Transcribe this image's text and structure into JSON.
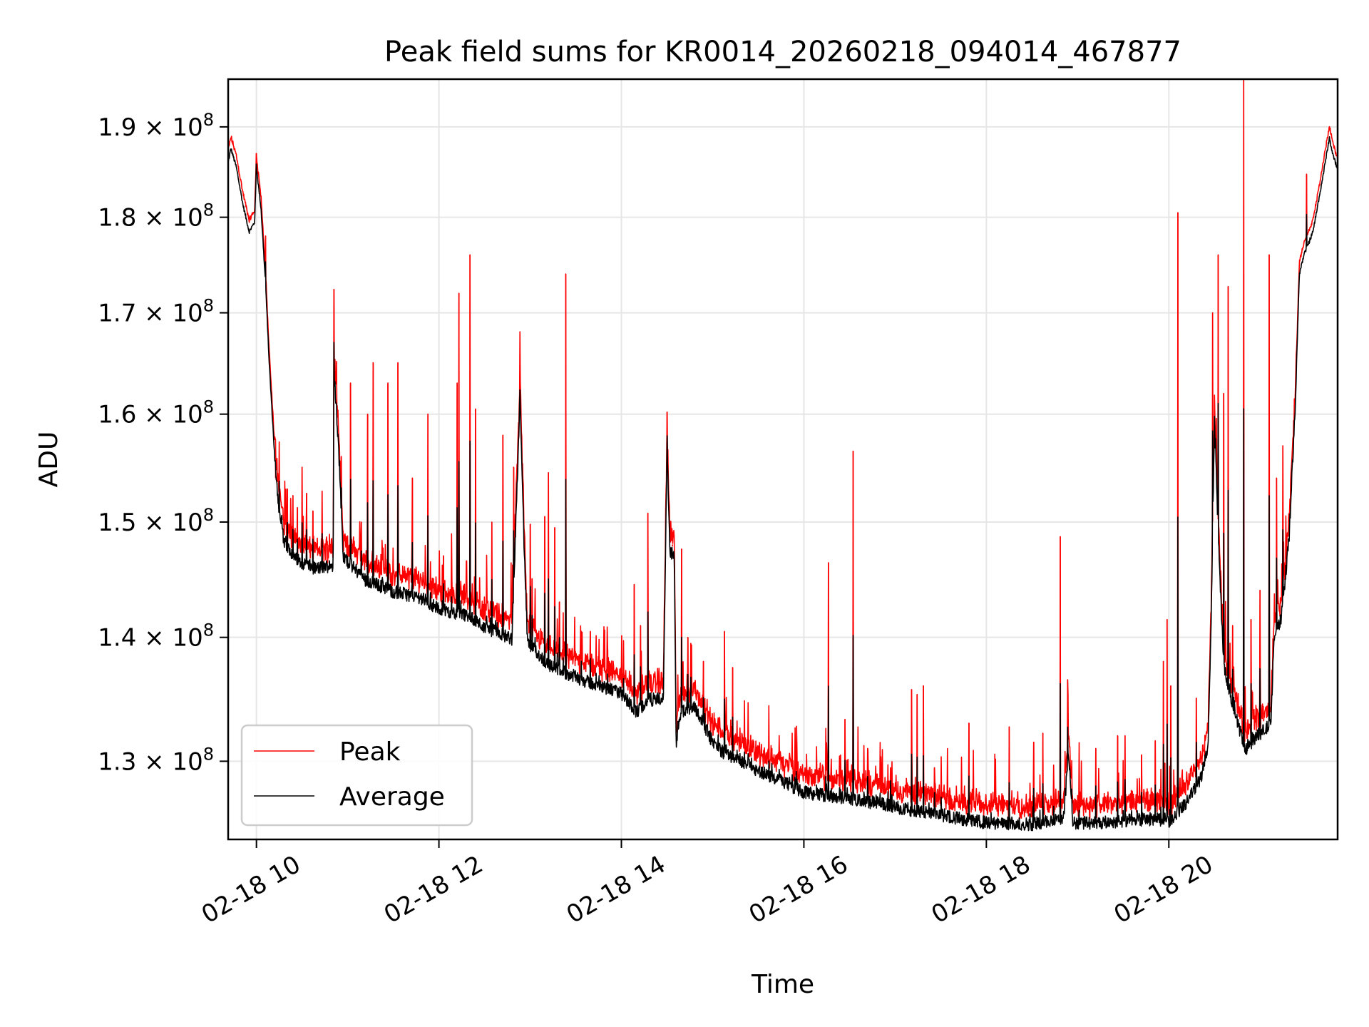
{
  "chart_data": {
    "type": "line",
    "title": "Peak field sums for KR0014_20260218_094014_467877",
    "xlabel": "Time",
    "ylabel": "ADU",
    "yscale": "log",
    "ylim": [
      124060000,
      195500000
    ],
    "xlim_hours": [
      9.69,
      21.85
    ],
    "x_unit": "hours on 2026-02-18",
    "grid": true,
    "legend_location": "lower-left",
    "x_ticks": [
      {
        "hour": 10,
        "label": "02-18 10"
      },
      {
        "hour": 12,
        "label": "02-18 12"
      },
      {
        "hour": 14,
        "label": "02-18 14"
      },
      {
        "hour": 16,
        "label": "02-18 16"
      },
      {
        "hour": 18,
        "label": "02-18 18"
      },
      {
        "hour": 20,
        "label": "02-18 20"
      }
    ],
    "y_ticks": [
      {
        "value": 130000000,
        "mantissa": "1.3",
        "exponent": "8"
      },
      {
        "value": 140000000,
        "mantissa": "1.4",
        "exponent": "8"
      },
      {
        "value": 150000000,
        "mantissa": "1.5",
        "exponent": "8"
      },
      {
        "value": 160000000,
        "mantissa": "1.6",
        "exponent": "8"
      },
      {
        "value": 170000000,
        "mantissa": "1.7",
        "exponent": "8"
      },
      {
        "value": 180000000,
        "mantissa": "1.8",
        "exponent": "8"
      },
      {
        "value": 190000000,
        "mantissa": "1.9",
        "exponent": "8"
      }
    ],
    "series": [
      {
        "name": "Peak",
        "color": "#ff0000",
        "baseline_offset_fraction": 0.006,
        "spikes": [
          [
            10.0,
            187000000
          ],
          [
            10.1,
            178000000
          ],
          [
            10.21,
            154000000
          ],
          [
            10.25,
            155500000
          ],
          [
            10.34,
            153000000
          ],
          [
            10.4,
            152400000
          ],
          [
            10.45,
            151300000
          ],
          [
            10.5,
            155000000
          ],
          [
            10.55,
            152600000
          ],
          [
            10.62,
            151000000
          ],
          [
            10.72,
            152800000
          ],
          [
            10.85,
            172400000
          ],
          [
            10.93,
            156000000
          ],
          [
            11.03,
            163000000
          ],
          [
            11.15,
            150000000
          ],
          [
            11.22,
            160000000
          ],
          [
            11.28,
            165000000
          ],
          [
            11.44,
            163000000
          ],
          [
            11.55,
            165000000
          ],
          [
            11.71,
            154000000
          ],
          [
            11.88,
            160000000
          ],
          [
            12.05,
            147000000
          ],
          [
            12.2,
            163000000
          ],
          [
            12.22,
            172000000
          ],
          [
            12.34,
            176000000
          ],
          [
            12.4,
            160500000
          ],
          [
            12.58,
            150000000
          ],
          [
            12.7,
            158000000
          ],
          [
            12.82,
            155000000
          ],
          [
            12.89,
            163700000
          ],
          [
            13.0,
            149800000
          ],
          [
            13.02,
            145000000
          ],
          [
            13.16,
            150500000
          ],
          [
            13.2,
            154500000
          ],
          [
            13.27,
            149500000
          ],
          [
            13.32,
            143000000
          ],
          [
            13.39,
            174000000
          ],
          [
            13.56,
            140500000
          ],
          [
            13.66,
            140500000
          ],
          [
            13.85,
            139000000
          ],
          [
            14.14,
            144500000
          ],
          [
            14.21,
            141000000
          ],
          [
            14.29,
            150800000
          ],
          [
            14.5,
            160200000
          ],
          [
            14.56,
            148000000
          ],
          [
            14.66,
            147600000
          ],
          [
            14.73,
            140000000
          ],
          [
            14.76,
            139500000
          ],
          [
            14.9,
            138000000
          ],
          [
            15.13,
            140500000
          ],
          [
            15.22,
            137500000
          ],
          [
            15.4,
            131000000
          ],
          [
            15.65,
            131000000
          ],
          [
            15.9,
            130000000
          ],
          [
            16.27,
            146400000
          ],
          [
            16.45,
            133300000
          ],
          [
            16.54,
            156500000
          ],
          [
            16.7,
            131000000
          ],
          [
            16.95,
            129500000
          ],
          [
            17.18,
            135700000
          ],
          [
            17.24,
            135300000
          ],
          [
            17.31,
            136000000
          ],
          [
            17.43,
            129500000
          ],
          [
            17.81,
            133000000
          ],
          [
            18.05,
            127500000
          ],
          [
            18.25,
            132700000
          ],
          [
            18.52,
            131500000
          ],
          [
            18.62,
            132200000
          ],
          [
            18.81,
            148700000
          ],
          [
            18.89,
            136500000
          ],
          [
            19.2,
            131000000
          ],
          [
            19.44,
            132000000
          ],
          [
            19.52,
            132000000
          ],
          [
            19.7,
            130500000
          ],
          [
            19.85,
            131600000
          ],
          [
            19.94,
            138000000
          ],
          [
            19.98,
            141500000
          ],
          [
            20.02,
            136000000
          ],
          [
            20.1,
            180500000
          ],
          [
            20.3,
            135000000
          ],
          [
            20.48,
            170000000
          ],
          [
            20.54,
            176000000
          ],
          [
            20.6,
            162000000
          ],
          [
            20.65,
            172700000
          ],
          [
            20.7,
            141000000
          ],
          [
            20.82,
            195500000
          ],
          [
            20.9,
            141500000
          ],
          [
            21.0,
            144000000
          ],
          [
            21.1,
            176000000
          ],
          [
            21.18,
            154000000
          ],
          [
            21.25,
            157000000
          ],
          [
            21.51,
            184700000
          ]
        ]
      },
      {
        "name": "Average",
        "color": "#000000",
        "baseline": [
          [
            9.69,
            186000000
          ],
          [
            9.72,
            187600000
          ],
          [
            9.78,
            185500000
          ],
          [
            9.85,
            181500000
          ],
          [
            9.92,
            178500000
          ],
          [
            9.98,
            179500000
          ],
          [
            10.0,
            185500000
          ],
          [
            10.05,
            181000000
          ],
          [
            10.1,
            173000000
          ],
          [
            10.14,
            165000000
          ],
          [
            10.2,
            156000000
          ],
          [
            10.25,
            151000000
          ],
          [
            10.3,
            148400000
          ],
          [
            10.4,
            147000000
          ],
          [
            10.5,
            146500000
          ],
          [
            10.65,
            146000000
          ],
          [
            10.84,
            146300000
          ],
          [
            10.85,
            164600000
          ],
          [
            10.9,
            157000000
          ],
          [
            10.95,
            147000000
          ],
          [
            11.2,
            145000000
          ],
          [
            11.5,
            144000000
          ],
          [
            11.8,
            143500000
          ],
          [
            12.0,
            142500000
          ],
          [
            12.3,
            142000000
          ],
          [
            12.5,
            141000000
          ],
          [
            12.8,
            140000000
          ],
          [
            12.89,
            162000000
          ],
          [
            12.93,
            149000000
          ],
          [
            12.97,
            139700000
          ],
          [
            13.2,
            137800000
          ],
          [
            13.6,
            136500000
          ],
          [
            14.0,
            135500000
          ],
          [
            14.17,
            134000000
          ],
          [
            14.3,
            135000000
          ],
          [
            14.46,
            135000000
          ],
          [
            14.5,
            157000000
          ],
          [
            14.53,
            147600000
          ],
          [
            14.58,
            147000000
          ],
          [
            14.6,
            131600000
          ],
          [
            14.66,
            134000000
          ],
          [
            14.8,
            134500000
          ],
          [
            15.0,
            131600000
          ],
          [
            15.16,
            130500000
          ],
          [
            15.22,
            130500000
          ],
          [
            15.5,
            129400000
          ],
          [
            16.0,
            127700000
          ],
          [
            16.56,
            127200000
          ],
          [
            17.3,
            126200000
          ],
          [
            18.0,
            125400000
          ],
          [
            18.5,
            125300000
          ],
          [
            18.85,
            125800000
          ],
          [
            18.9,
            131000000
          ],
          [
            18.95,
            125400000
          ],
          [
            19.25,
            125400000
          ],
          [
            19.83,
            125700000
          ],
          [
            20.0,
            125500000
          ],
          [
            20.2,
            127000000
          ],
          [
            20.35,
            128800000
          ],
          [
            20.43,
            131300000
          ],
          [
            20.46,
            140000000
          ],
          [
            20.5,
            159500000
          ],
          [
            20.53,
            152000000
          ],
          [
            20.56,
            145000000
          ],
          [
            20.6,
            138000000
          ],
          [
            20.7,
            134500000
          ],
          [
            20.84,
            131000000
          ],
          [
            20.95,
            132000000
          ],
          [
            21.12,
            133000000
          ],
          [
            21.15,
            140000000
          ],
          [
            21.24,
            142000000
          ],
          [
            21.32,
            149000000
          ],
          [
            21.39,
            162000000
          ],
          [
            21.43,
            174000000
          ],
          [
            21.48,
            176000000
          ],
          [
            21.58,
            178500000
          ],
          [
            21.68,
            184000000
          ],
          [
            21.76,
            188800000
          ],
          [
            21.8,
            186800000
          ],
          [
            21.85,
            185300000
          ]
        ]
      }
    ]
  }
}
